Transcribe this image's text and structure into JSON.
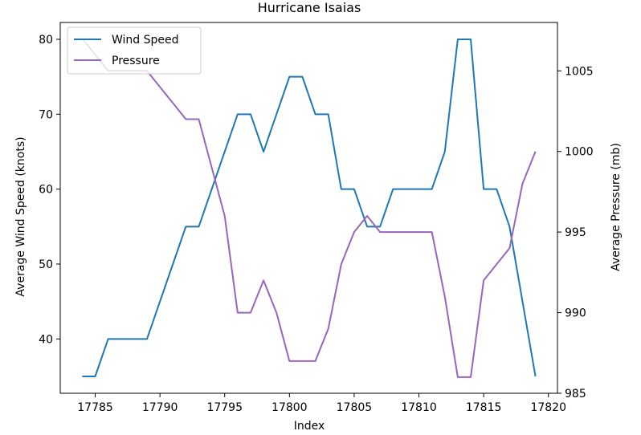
{
  "chart_data": {
    "type": "line",
    "title": "Hurricane Isaias",
    "xlabel": "Index",
    "ylabel_left": "Average Wind Speed (knots)",
    "ylabel_right": "Average Pressure (mb)",
    "xlim": [
      17782.3,
      17820.7
    ],
    "ylim_left": [
      32.75,
      82.25
    ],
    "ylim_right": [
      985.0,
      1008.0
    ],
    "x_ticks": [
      17785,
      17790,
      17795,
      17800,
      17805,
      17810,
      17815,
      17820
    ],
    "y_left_ticks": [
      40,
      50,
      60,
      70,
      80
    ],
    "y_right_ticks": [
      985,
      990,
      995,
      1000,
      1005
    ],
    "grid": false,
    "legend_position": "upper-left",
    "x": [
      17784,
      17785,
      17786,
      17787,
      17788,
      17789,
      17790,
      17791,
      17792,
      17793,
      17794,
      17795,
      17796,
      17797,
      17798,
      17799,
      17800,
      17801,
      17802,
      17803,
      17804,
      17805,
      17806,
      17807,
      17808,
      17809,
      17810,
      17811,
      17812,
      17813,
      17814,
      17815,
      17816,
      17817,
      17818,
      17819
    ],
    "series": [
      {
        "name": "Wind Speed",
        "axis": "left",
        "color": "#1f77b4",
        "values": [
          35,
          35,
          40,
          40,
          40,
          40,
          45,
          50,
          55,
          55,
          60,
          65,
          70,
          70,
          65,
          70,
          75,
          75,
          70,
          70,
          60,
          60,
          55,
          55,
          60,
          60,
          60,
          60,
          65,
          80,
          80,
          60,
          60,
          55,
          45,
          35
        ]
      },
      {
        "name": "Pressure",
        "axis": "right",
        "color": "#9467bd",
        "values": [
          1007,
          1006,
          1005,
          1005,
          1005,
          1005,
          1004,
          1003,
          1002,
          1002,
          999,
          996,
          990,
          990,
          992,
          990,
          987,
          987,
          987,
          989,
          993,
          995,
          996,
          995,
          995,
          995,
          995,
          995,
          991,
          986,
          986,
          992,
          993,
          994,
          998,
          1000
        ]
      }
    ]
  }
}
